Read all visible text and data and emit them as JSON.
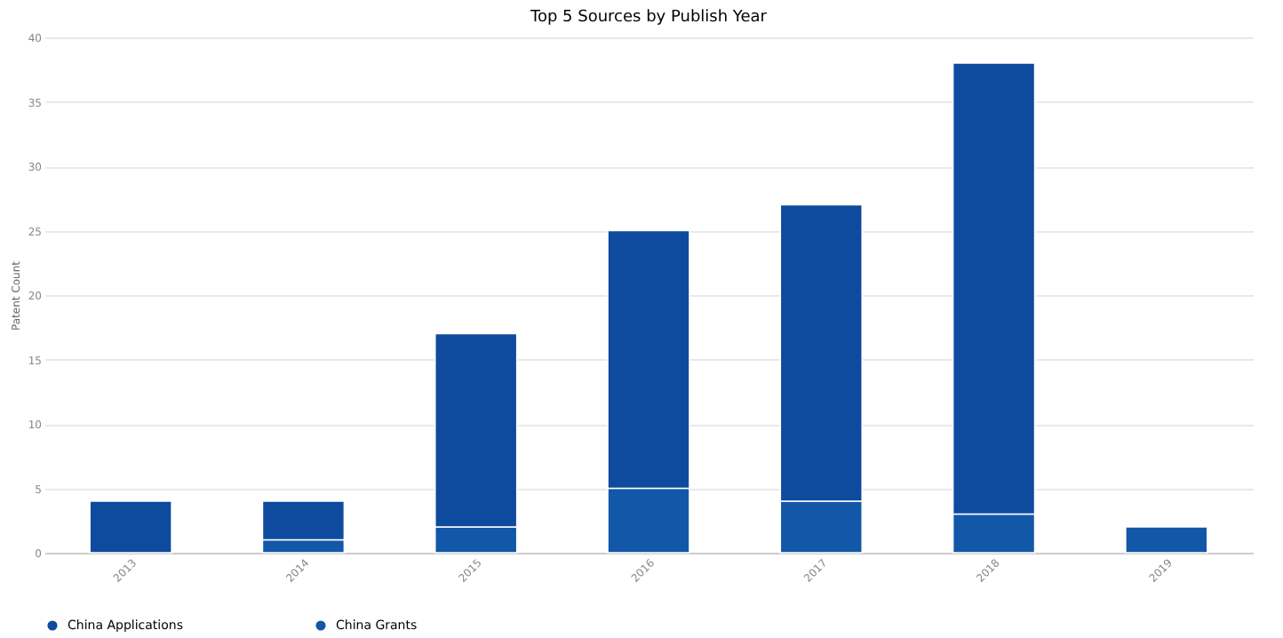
{
  "chart_data": {
    "type": "bar",
    "title": "Top 5 Sources by Publish Year",
    "ylabel": "Patent Count",
    "categories": [
      "2013",
      "2014",
      "2015",
      "2016",
      "2017",
      "2018",
      "2019"
    ],
    "stacked": true,
    "series": [
      {
        "name": "China Grants",
        "color": "#1257a8",
        "values": [
          0,
          1,
          2,
          5,
          4,
          3,
          2
        ]
      },
      {
        "name": "China Applications",
        "color": "#0e4a9e",
        "values": [
          4,
          3,
          15,
          20,
          23,
          35,
          0
        ]
      }
    ],
    "ylim": [
      0,
      40
    ],
    "yticks": [
      0,
      5,
      10,
      15,
      20,
      25,
      30,
      35,
      40
    ],
    "grid": "y",
    "legend": "bottom left"
  }
}
